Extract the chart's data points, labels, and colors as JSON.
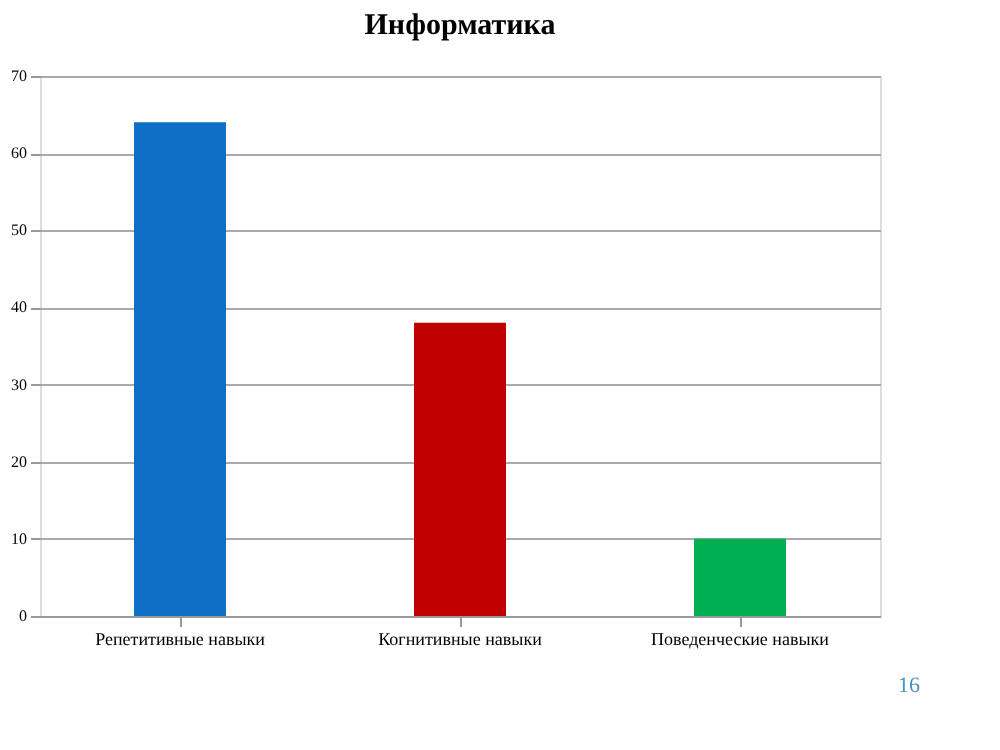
{
  "chart_data": {
    "type": "bar",
    "title": "Информатика",
    "categories": [
      "Репетитивные навыки",
      "Когнитивные навыки",
      "Поведенческие навыки"
    ],
    "values": [
      64,
      38,
      10
    ],
    "colors": [
      "#0f6fc6",
      "#c00000",
      "#00b050"
    ],
    "ylim": [
      0,
      70
    ],
    "yticks": [
      0,
      10,
      20,
      30,
      40,
      50,
      60,
      70
    ],
    "grid": "y",
    "annotations": [
      "16"
    ]
  }
}
